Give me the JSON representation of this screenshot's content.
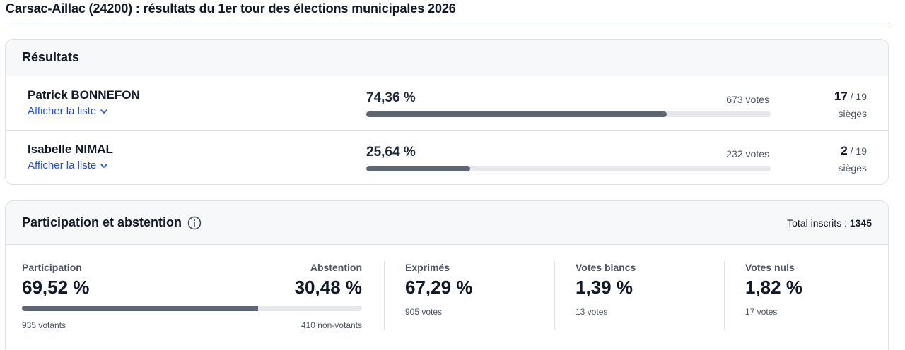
{
  "page": {
    "title": "Carsac-Aillac (24200) : résultats du 1er tour des élections municipales 2026"
  },
  "results": {
    "heading": "Résultats",
    "candidates": [
      {
        "name": "Patrick BONNEFON",
        "link_label": "Afficher la liste",
        "percent_label": "74,36 %",
        "percent": 74.36,
        "votes_label": "673 votes",
        "seats": "17",
        "seats_total": "/ 19",
        "seats_label": "sièges"
      },
      {
        "name": "Isabelle NIMAL",
        "link_label": "Afficher la liste",
        "percent_label": "25,64 %",
        "percent": 25.64,
        "votes_label": "232 votes",
        "seats": "2",
        "seats_total": "/ 19",
        "seats_label": "sièges"
      }
    ]
  },
  "participation": {
    "heading": "Participation et abstention",
    "info_icon": "info-icon",
    "total_label": "Total inscrits :",
    "total_value": "1345",
    "participation_label": "Participation",
    "participation_value": "69,52 %",
    "participation_percent": 69.52,
    "participation_sub": "935 votants",
    "abstention_label": "Abstention",
    "abstention_value": "30,48 %",
    "abstention_sub": "410 non-votants",
    "exprimes_label": "Exprimés",
    "exprimes_value": "67,29 %",
    "exprimes_sub": "905 votes",
    "blancs_label": "Votes blancs",
    "blancs_value": "1,39 %",
    "blancs_sub": "13 votes",
    "nuls_label": "Votes nuls",
    "nuls_value": "1,82 %",
    "nuls_sub": "17 votes"
  },
  "colors": {
    "bar_fill": "#5f6673",
    "bar_track": "#e5e7eb",
    "link": "#1d4ed8"
  }
}
